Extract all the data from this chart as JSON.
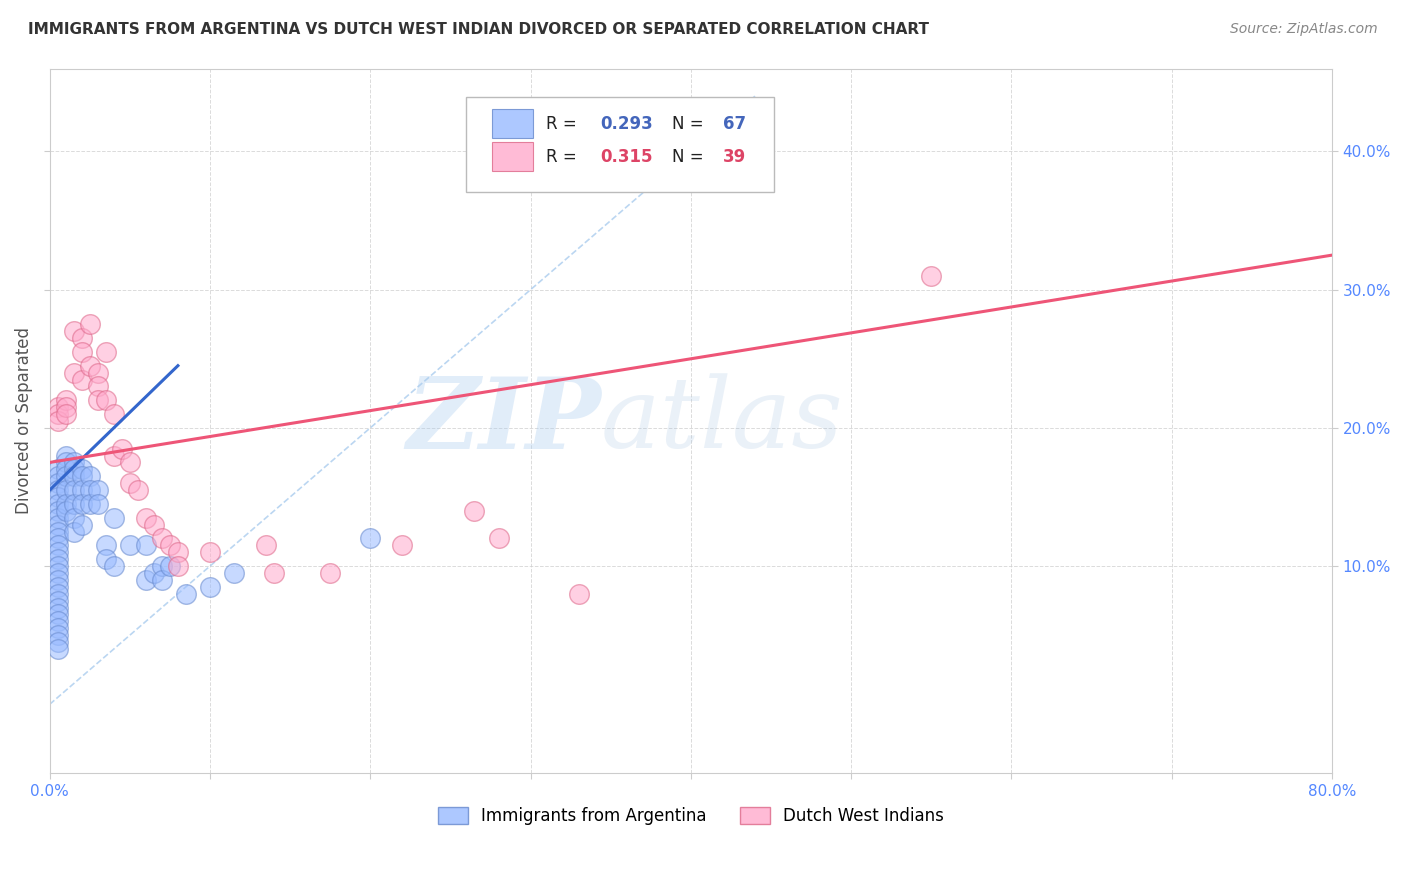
{
  "title": "IMMIGRANTS FROM ARGENTINA VS DUTCH WEST INDIAN DIVORCED OR SEPARATED CORRELATION CHART",
  "source": "Source: ZipAtlas.com",
  "ylabel": "Divorced or Separated",
  "y_tick_values": [
    0.1,
    0.2,
    0.3,
    0.4
  ],
  "xlim": [
    0.0,
    0.8
  ],
  "ylim": [
    -0.05,
    0.46
  ],
  "legend_label_blue": "Immigrants from Argentina",
  "legend_label_pink": "Dutch West Indians",
  "blue_color": "#99bbff",
  "pink_color": "#ffaacc",
  "blue_edge": "#6688cc",
  "pink_edge": "#dd6688",
  "blue_line_color": "#3366cc",
  "pink_line_color": "#ee5577",
  "diag_line_color": "#aaccee",
  "blue_scatter": [
    [
      0.005,
      0.17
    ],
    [
      0.005,
      0.165
    ],
    [
      0.005,
      0.16
    ],
    [
      0.005,
      0.155
    ],
    [
      0.005,
      0.15
    ],
    [
      0.005,
      0.145
    ],
    [
      0.005,
      0.14
    ],
    [
      0.005,
      0.135
    ],
    [
      0.005,
      0.13
    ],
    [
      0.005,
      0.125
    ],
    [
      0.005,
      0.12
    ],
    [
      0.005,
      0.115
    ],
    [
      0.005,
      0.11
    ],
    [
      0.005,
      0.105
    ],
    [
      0.005,
      0.1
    ],
    [
      0.005,
      0.095
    ],
    [
      0.005,
      0.09
    ],
    [
      0.005,
      0.085
    ],
    [
      0.005,
      0.08
    ],
    [
      0.005,
      0.075
    ],
    [
      0.005,
      0.07
    ],
    [
      0.005,
      0.065
    ],
    [
      0.005,
      0.06
    ],
    [
      0.005,
      0.055
    ],
    [
      0.005,
      0.05
    ],
    [
      0.005,
      0.045
    ],
    [
      0.005,
      0.04
    ],
    [
      0.01,
      0.18
    ],
    [
      0.01,
      0.175
    ],
    [
      0.01,
      0.17
    ],
    [
      0.01,
      0.165
    ],
    [
      0.01,
      0.155
    ],
    [
      0.01,
      0.145
    ],
    [
      0.01,
      0.14
    ],
    [
      0.015,
      0.175
    ],
    [
      0.015,
      0.17
    ],
    [
      0.015,
      0.165
    ],
    [
      0.015,
      0.155
    ],
    [
      0.015,
      0.145
    ],
    [
      0.015,
      0.135
    ],
    [
      0.015,
      0.125
    ],
    [
      0.02,
      0.17
    ],
    [
      0.02,
      0.165
    ],
    [
      0.02,
      0.155
    ],
    [
      0.02,
      0.145
    ],
    [
      0.02,
      0.13
    ],
    [
      0.025,
      0.165
    ],
    [
      0.025,
      0.155
    ],
    [
      0.025,
      0.145
    ],
    [
      0.03,
      0.155
    ],
    [
      0.03,
      0.145
    ],
    [
      0.035,
      0.115
    ],
    [
      0.035,
      0.105
    ],
    [
      0.04,
      0.135
    ],
    [
      0.04,
      0.1
    ],
    [
      0.05,
      0.115
    ],
    [
      0.06,
      0.115
    ],
    [
      0.06,
      0.09
    ],
    [
      0.065,
      0.095
    ],
    [
      0.07,
      0.1
    ],
    [
      0.07,
      0.09
    ],
    [
      0.075,
      0.1
    ],
    [
      0.085,
      0.08
    ],
    [
      0.1,
      0.085
    ],
    [
      0.115,
      0.095
    ],
    [
      0.2,
      0.12
    ]
  ],
  "pink_scatter": [
    [
      0.005,
      0.215
    ],
    [
      0.005,
      0.21
    ],
    [
      0.005,
      0.205
    ],
    [
      0.01,
      0.22
    ],
    [
      0.01,
      0.215
    ],
    [
      0.01,
      0.21
    ],
    [
      0.015,
      0.27
    ],
    [
      0.015,
      0.24
    ],
    [
      0.02,
      0.265
    ],
    [
      0.02,
      0.255
    ],
    [
      0.02,
      0.235
    ],
    [
      0.025,
      0.275
    ],
    [
      0.025,
      0.245
    ],
    [
      0.03,
      0.24
    ],
    [
      0.03,
      0.23
    ],
    [
      0.03,
      0.22
    ],
    [
      0.035,
      0.255
    ],
    [
      0.035,
      0.22
    ],
    [
      0.04,
      0.21
    ],
    [
      0.04,
      0.18
    ],
    [
      0.045,
      0.185
    ],
    [
      0.05,
      0.175
    ],
    [
      0.05,
      0.16
    ],
    [
      0.055,
      0.155
    ],
    [
      0.06,
      0.135
    ],
    [
      0.065,
      0.13
    ],
    [
      0.07,
      0.12
    ],
    [
      0.075,
      0.115
    ],
    [
      0.08,
      0.11
    ],
    [
      0.08,
      0.1
    ],
    [
      0.1,
      0.11
    ],
    [
      0.135,
      0.115
    ],
    [
      0.14,
      0.095
    ],
    [
      0.175,
      0.095
    ],
    [
      0.22,
      0.115
    ],
    [
      0.55,
      0.31
    ],
    [
      0.265,
      0.14
    ],
    [
      0.28,
      0.12
    ],
    [
      0.33,
      0.08
    ]
  ],
  "blue_line": [
    [
      0.0,
      0.155
    ],
    [
      0.08,
      0.245
    ]
  ],
  "pink_line": [
    [
      0.0,
      0.175
    ],
    [
      0.8,
      0.325
    ]
  ],
  "diag_line": [
    [
      0.0,
      0.0
    ],
    [
      0.44,
      0.44
    ]
  ],
  "watermark_zip": "ZIP",
  "watermark_atlas": "atlas",
  "background_color": "#ffffff",
  "grid_color": "#cccccc",
  "text_color_dark": "#222222",
  "text_color_blue": "#4466bb",
  "text_color_pink": "#dd4466",
  "axis_label_color": "#5588ff"
}
